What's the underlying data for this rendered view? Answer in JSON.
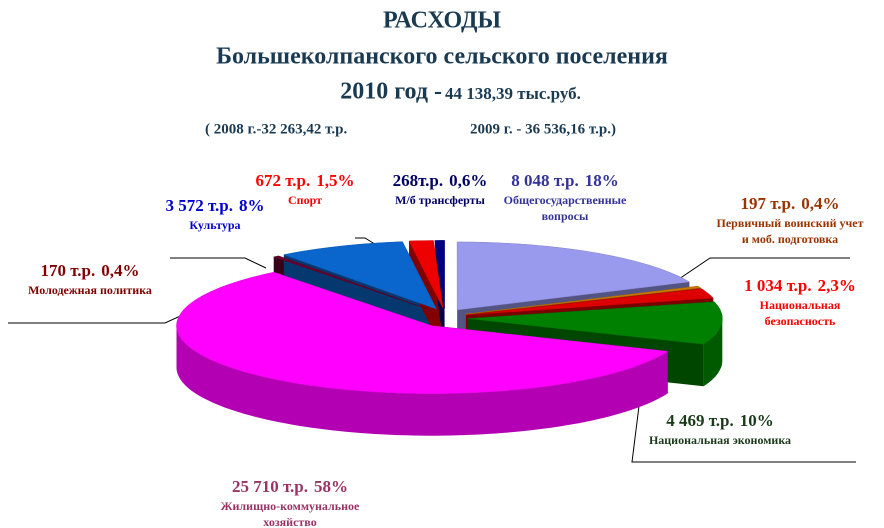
{
  "chart_data": {
    "type": "pie",
    "title": "РАСХОДЫ",
    "subtitle": "Большеколпанского сельского поселения",
    "year_label": "2010 год - ",
    "total_label": "44 138,39 тыс.руб.",
    "history_2008": "( 2008 г.-32 263,42 т.р.",
    "history_2009": "2009 г. - 36 536,16 т.р.)",
    "labels": [
      [
        "Общегосударственные",
        "вопросы"
      ],
      [
        "Первичный воинский учет",
        "и моб. подготовка"
      ],
      [
        "Национальная",
        "безопасность"
      ],
      [
        "Национальная экономика"
      ],
      [
        "Жилищно-коммунальное",
        "хозяйство"
      ],
      [
        "Молодежная политика"
      ],
      [
        "Культура"
      ],
      [
        "Спорт"
      ],
      [
        "М/б трансферты"
      ]
    ],
    "values": [
      8048,
      197,
      1034,
      4469,
      25710,
      170,
      3572,
      672,
      268
    ],
    "value_labels": [
      "8 048 т.р.",
      "197 т.р.",
      "1 034 т.р.",
      "4 469 т.р.",
      "25 710 т.р.",
      "170 т.р.",
      "3 572 т.р.",
      "672 т.р.",
      "268т.р."
    ],
    "percents": [
      18,
      0.4,
      2.3,
      10,
      58,
      0.4,
      8,
      1.5,
      0.6
    ],
    "percent_labels": [
      "18%",
      "0,4%",
      "2,3%",
      "10%",
      "58%",
      "0,4%",
      "8%",
      "1,5%",
      "0,6%"
    ],
    "colors": [
      "#9999ee",
      "#cc7a00",
      "#dd0000",
      "#008000",
      "#ff00ff",
      "#66002e",
      "#0a66cc",
      "#ee0000",
      "#000080"
    ],
    "label_colors": [
      "#333399",
      "#993300",
      "#ff0000",
      "#1a3a1a",
      "#993366",
      "#800000",
      "#0000cc",
      "#ff0000",
      "#000066"
    ]
  }
}
